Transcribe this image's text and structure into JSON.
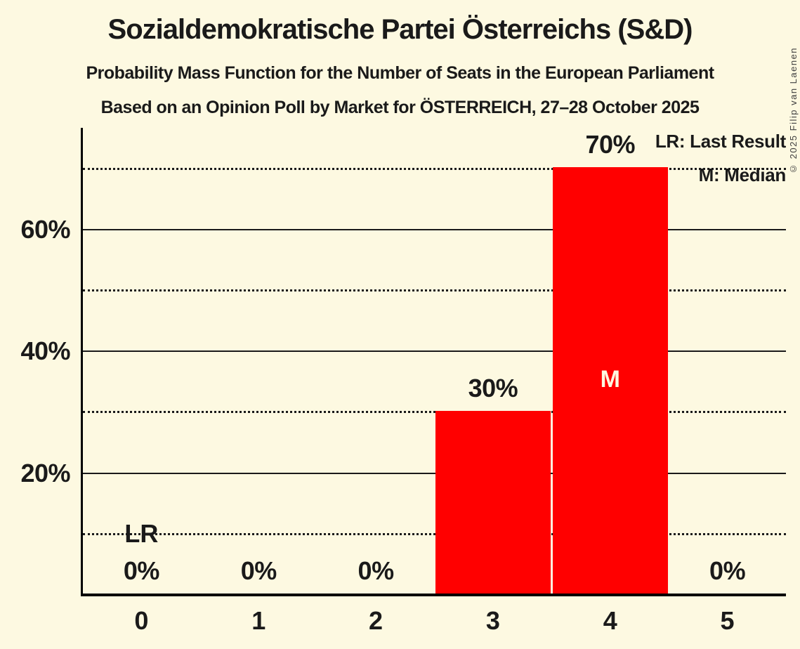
{
  "title": "Sozialdemokratische Partei Österreichs (S&D)",
  "subtitle": "Probability Mass Function for the Number of Seats in the European Parliament",
  "source_line": "Based on an Opinion Poll by Market for ÖSTERREICH, 27–28 October 2025",
  "copyright": "© 2025 Filip van Laenen",
  "legend": {
    "last_result": "LR: Last Result",
    "median": "M: Median"
  },
  "colors": {
    "background": "#FDF9E1",
    "bar": "#FF0000",
    "text": "#1A1A1A",
    "label_inside_bar": "#FDF9E1"
  },
  "chart_data": {
    "type": "bar",
    "title": "Sozialdemokratische Partei Österreichs (S&D)",
    "xlabel": "",
    "ylabel": "",
    "categories": [
      "0",
      "1",
      "2",
      "3",
      "4",
      "5"
    ],
    "values": [
      0,
      0,
      0,
      30,
      70,
      0
    ],
    "value_labels": [
      "0%",
      "0%",
      "0%",
      "30%",
      "70%",
      "0%"
    ],
    "ylim": [
      0,
      77
    ],
    "yticks": [
      {
        "pct": 20,
        "label": "20%"
      },
      {
        "pct": 40,
        "label": "40%"
      },
      {
        "pct": 60,
        "label": "60%"
      }
    ],
    "ygrid_solid": [
      20,
      40,
      60
    ],
    "ygrid_dotted": [
      10,
      30,
      50,
      70
    ],
    "legend_position": "top-right",
    "annotations": {
      "median": {
        "category_index": 4,
        "label": "M"
      },
      "last_result": {
        "category_index": 0,
        "label": "LR",
        "at_pct_line": 10
      }
    }
  }
}
